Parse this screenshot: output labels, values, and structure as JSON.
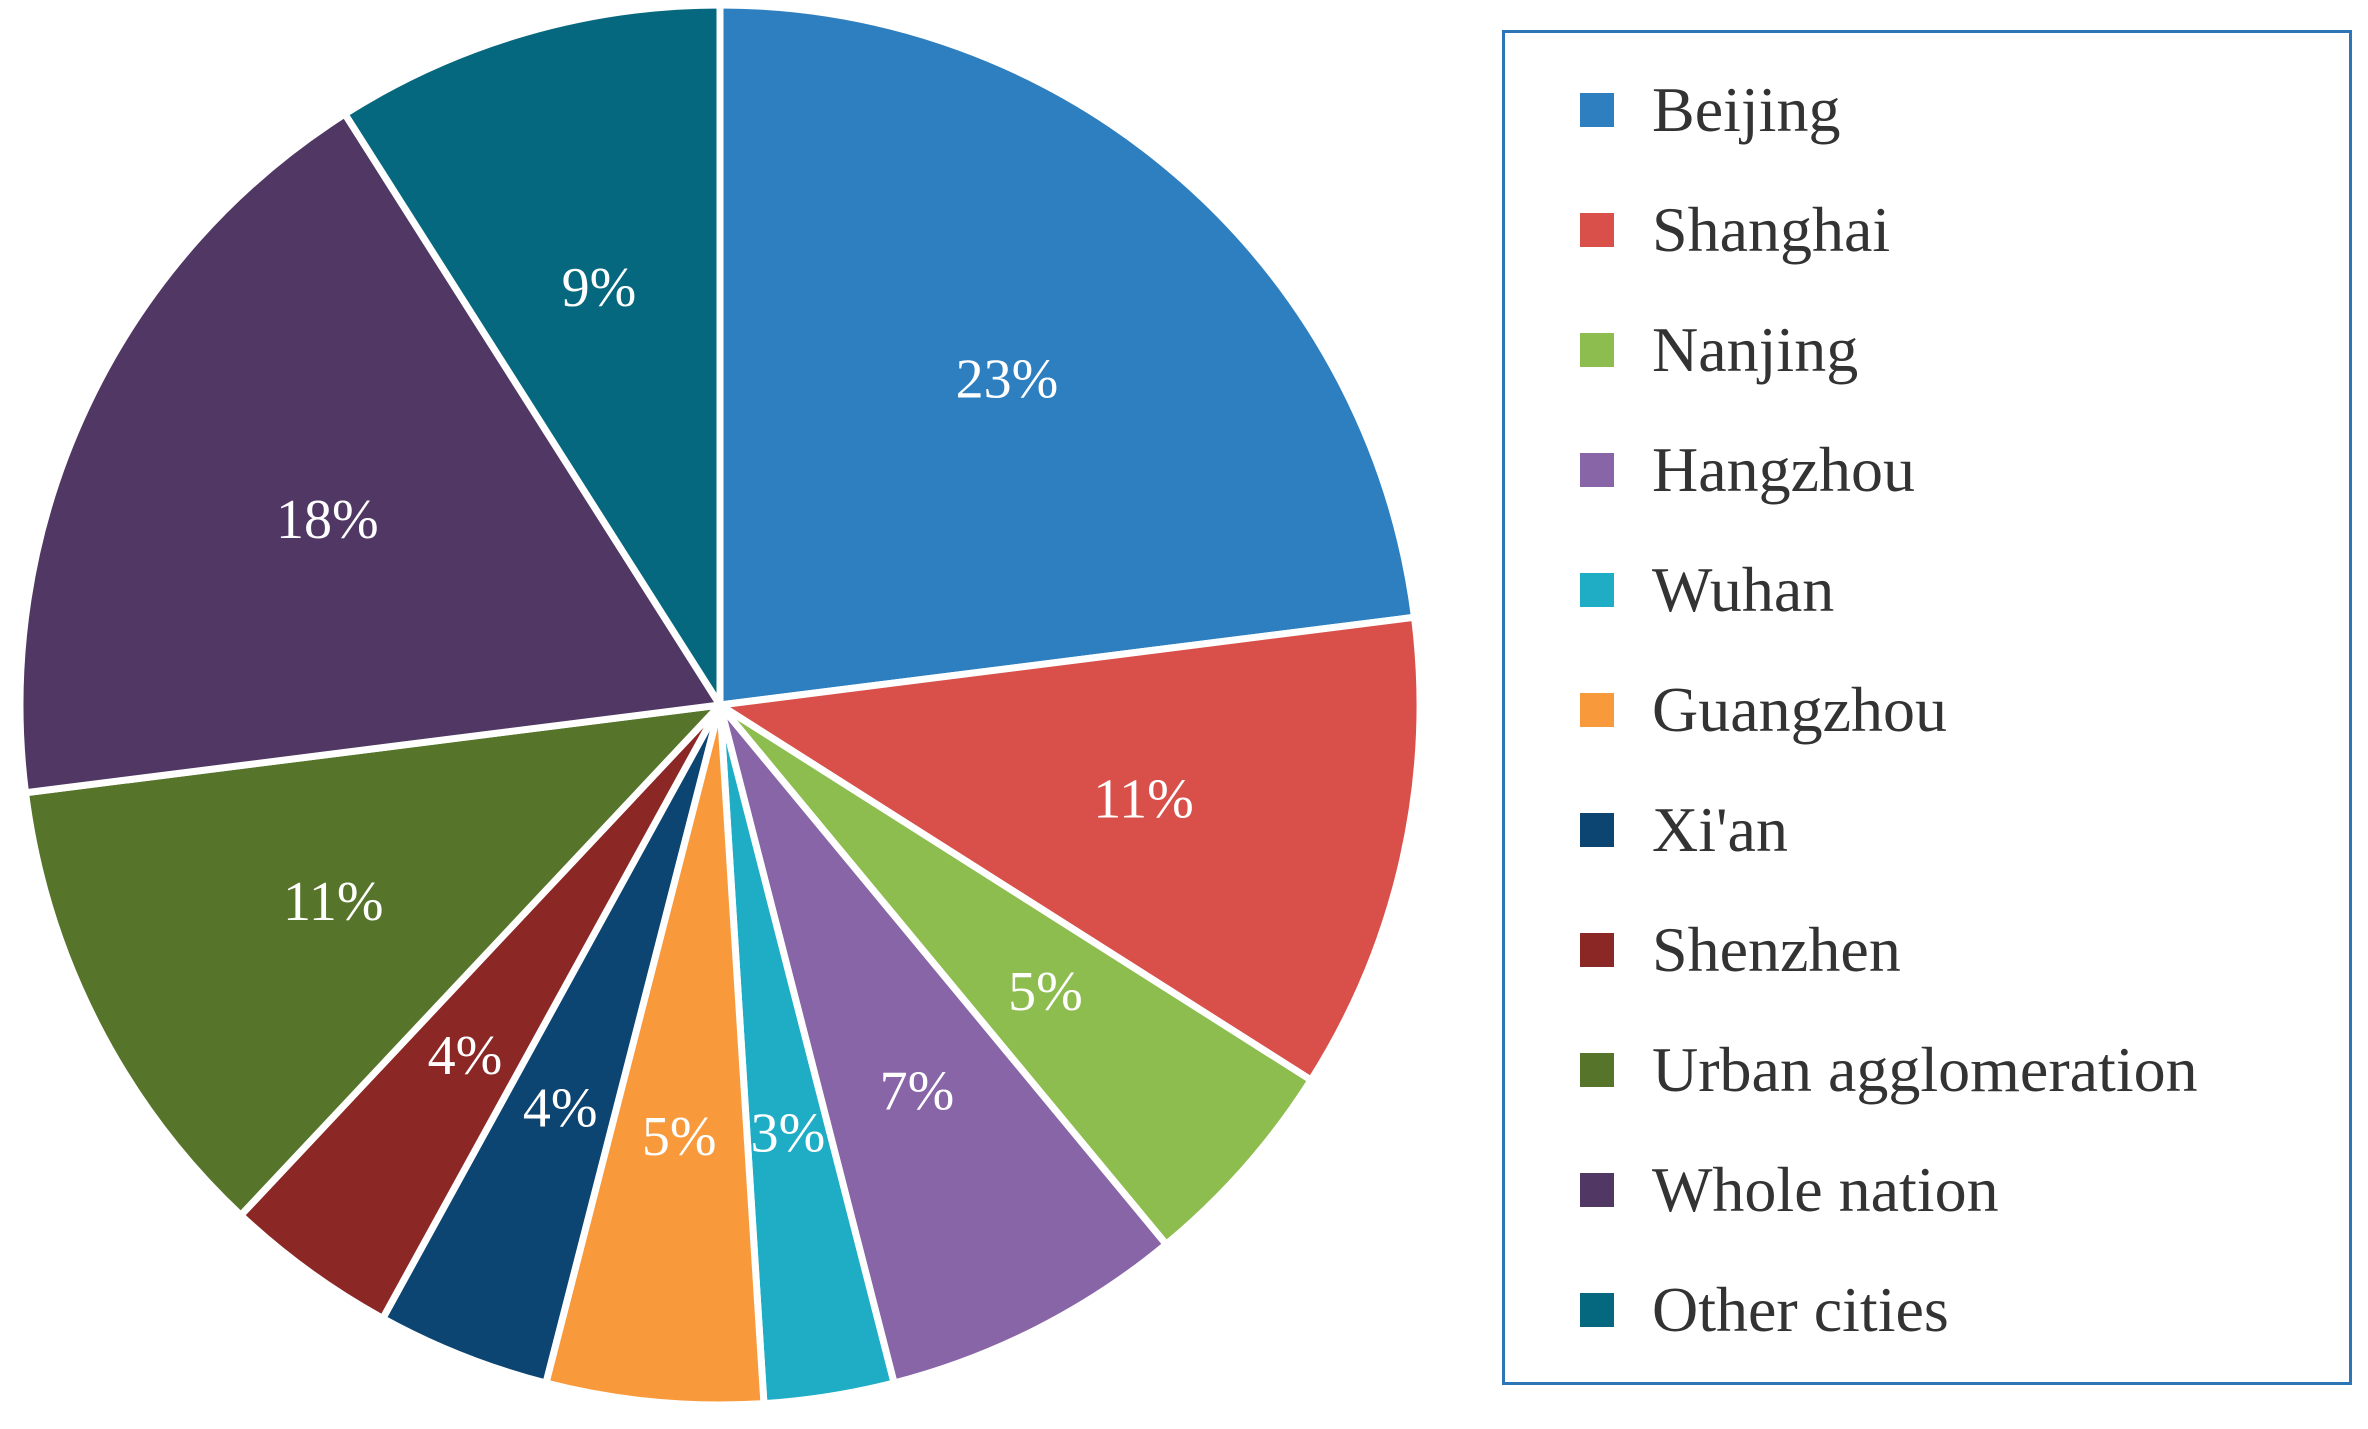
{
  "chart_data": {
    "type": "pie",
    "title": "",
    "categories": [
      "Beijing",
      "Shanghai",
      "Nanjing",
      "Hangzhou",
      "Wuhan",
      "Guangzhou",
      "Xi'an",
      "Shenzhen",
      "Urban agglomeration",
      "Whole nation",
      "Other cities"
    ],
    "values": [
      23,
      11,
      5,
      7,
      3,
      5,
      4,
      4,
      11,
      18,
      9
    ],
    "labels": [
      "23%",
      "11%",
      "5%",
      "7%",
      "3%",
      "5%",
      "4%",
      "4%",
      "11%",
      "18%",
      "9%"
    ],
    "colors": [
      "#2e7fc0",
      "#d9504b",
      "#8dbd4f",
      "#8765a6",
      "#1fadc6",
      "#f8993c",
      "#0d4572",
      "#8b2826",
      "#56752a",
      "#503764",
      "#05687e"
    ],
    "unit": "%",
    "legend_position": "right"
  }
}
